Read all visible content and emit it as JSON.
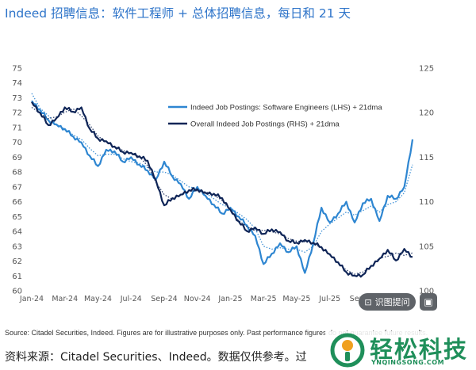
{
  "title": "Indeed 招聘信息：软件工程师 + 总体招聘信息，每日和 21 天",
  "chart_data": {
    "type": "line",
    "title": "Indeed 招聘信息：软件工程师 + 总体招聘信息，每日和 21 天",
    "x_ticks": [
      "Jan-24",
      "Mar-24",
      "May-24",
      "Jul-24",
      "Sep-24",
      "Nov-24",
      "Jan-25",
      "Mar-25",
      "May-25",
      "Jul-25",
      "Sep-25",
      "Nov-25"
    ],
    "left_axis": {
      "ylim": [
        60,
        75
      ],
      "ticks": [
        60,
        61,
        62,
        63,
        64,
        65,
        66,
        67,
        68,
        69,
        70,
        71,
        72,
        73,
        74,
        75
      ]
    },
    "right_axis": {
      "ylim": [
        100,
        125
      ],
      "ticks": [
        100,
        105,
        110,
        115,
        120,
        125
      ]
    },
    "series": [
      {
        "name": "Indeed Job Postings: Software Engineers (LHS) + 21dma",
        "axis": "left",
        "color": "#2e86d1",
        "x": [
          0,
          0.5,
          1,
          1.5,
          2,
          2.5,
          3,
          3.5,
          4,
          4.5,
          5,
          5.5,
          6,
          6.5,
          7,
          7.5,
          8,
          8.5,
          9,
          9.5,
          10,
          10.5,
          11,
          11.5,
          12,
          12.5,
          13,
          13.5,
          14,
          14.5,
          15,
          15.5,
          16,
          16.5,
          17,
          17.5,
          18,
          18.5,
          19,
          19.5,
          20,
          20.5,
          21,
          21.5,
          22,
          22.5,
          23
        ],
        "values": [
          72.8,
          72.2,
          71.5,
          71.2,
          70.9,
          70.4,
          70.0,
          69.1,
          68.4,
          69.5,
          69.4,
          68.7,
          69.0,
          68.5,
          68.1,
          67.5,
          68.7,
          67.7,
          67.2,
          66.2,
          67.0,
          66.4,
          65.8,
          65.2,
          65.6,
          65.0,
          64.4,
          63.7,
          61.8,
          62.5,
          63.2,
          62.6,
          63.0,
          61.2,
          63.2,
          65.6,
          64.6,
          65.2,
          66.0,
          64.6,
          65.9,
          66.2,
          64.7,
          66.4,
          66.2,
          67.0,
          70.2
        ],
        "dma": [
          73.3,
          72.3,
          71.8,
          71.2,
          70.9,
          70.5,
          70.2,
          69.6,
          69.1,
          69.2,
          69.2,
          68.9,
          68.7,
          68.6,
          68.3,
          68.0,
          68.0,
          67.8,
          67.4,
          67.0,
          66.9,
          66.6,
          66.2,
          65.8,
          65.6,
          65.2,
          64.8,
          64.2,
          63.0,
          62.8,
          62.9,
          62.8,
          62.8,
          62.6,
          63.0,
          64.0,
          64.5,
          64.9,
          65.3,
          65.1,
          65.4,
          65.7,
          65.3,
          65.8,
          66.0,
          66.6,
          68.5
        ]
      },
      {
        "name": "Overall Indeed Job Postings (RHS) + 21dma",
        "axis": "right",
        "color": "#0f2557",
        "x": [
          0,
          0.5,
          1,
          1.5,
          2,
          2.5,
          3,
          3.5,
          4,
          4.5,
          5,
          5.5,
          6,
          6.5,
          7,
          7.5,
          8,
          8.5,
          9,
          9.5,
          10,
          10.5,
          11,
          11.5,
          12,
          12.5,
          13,
          13.5,
          14,
          14.5,
          15,
          15.5,
          16,
          16.5,
          17,
          17.5,
          18,
          18.5,
          19,
          19.5,
          20,
          20.5,
          21,
          21.5,
          22,
          22.5,
          23
        ],
        "values": [
          121.2,
          120.0,
          118.6,
          119.4,
          120.6,
          120.1,
          120.6,
          118.2,
          117.1,
          116.8,
          116.2,
          115.6,
          115.5,
          115.1,
          114.6,
          112.4,
          109.6,
          110.4,
          110.8,
          111.3,
          111.4,
          111.0,
          110.9,
          110.4,
          109.1,
          107.8,
          106.7,
          107.1,
          106.4,
          106.9,
          106.6,
          105.6,
          105.4,
          105.7,
          105.4,
          104.9,
          104.1,
          103.2,
          102.1,
          101.7,
          101.8,
          102.8,
          103.6,
          104.6,
          103.4,
          104.7,
          103.8
        ]
      }
    ],
    "legend": [
      {
        "label": "Indeed Job Postings: Software Engineers (LHS) + 21dma",
        "color": "#2e86d1"
      },
      {
        "label": "Overall Indeed Job Postings (RHS) + 21dma",
        "color": "#0f2557"
      }
    ],
    "legend_position": "top-right"
  },
  "source": "Source: Citadel Securities, Indeed. Figures are for illustrative purposes only. Past performance figures do not guarantee future results.",
  "caption": "资料来源：Citadel Securities、Indeed。数据仅供参考。过",
  "overlay": {
    "ocr_label": "识图提问",
    "ocr_icon": "scan-text-icon",
    "image_icon": "image-icon"
  },
  "watermark": {
    "name": "轻松科技",
    "url": "YNQINGSONG.COM",
    "logo_color": "#1f8f5a"
  }
}
